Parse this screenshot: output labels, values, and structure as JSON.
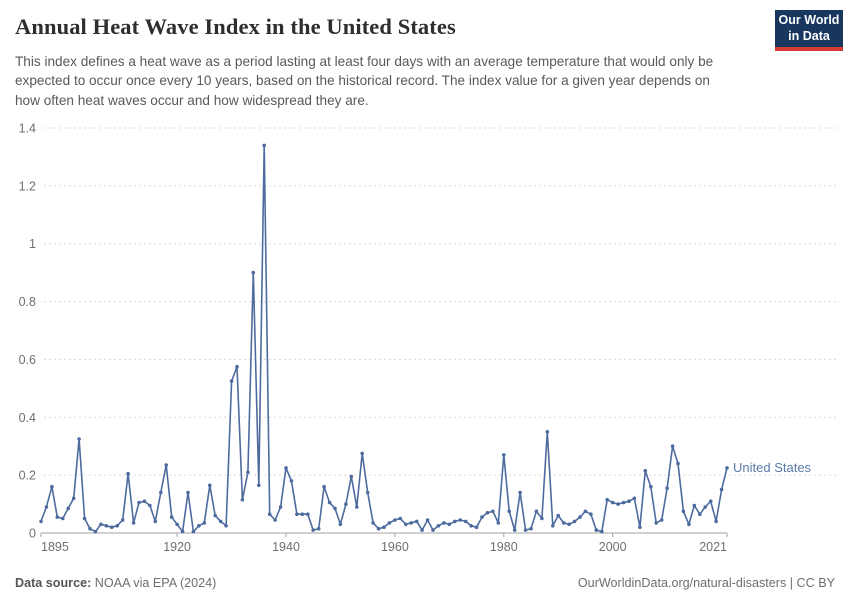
{
  "header": {
    "title": "Annual Heat Wave Index in the United States",
    "logo": {
      "line1": "Our World",
      "line2": "in Data"
    }
  },
  "subtitle": "This index defines a heat wave as a period lasting at least four days with an average temperature that would only be expected to occur once every 10 years, based on the historical record. The index value for a given year depends on how often heat waves occur and how widespread they are.",
  "chart_data": {
    "type": "line",
    "title": "Annual Heat Wave Index in the United States",
    "xlabel": "",
    "ylabel": "",
    "xlim": [
      1895,
      2021
    ],
    "ylim": [
      0,
      1.4
    ],
    "grid": "horizontal-dashed",
    "legend_position": "end-of-line-label",
    "xticks": [
      1895,
      1920,
      1940,
      1960,
      1980,
      2000,
      2021
    ],
    "ytick_values": [
      0,
      0.2,
      0.4,
      0.6,
      0.8,
      1,
      1.2,
      1.4
    ],
    "ytick_labels": [
      "0",
      "0.2",
      "0.4",
      "0.6",
      "0.8",
      "1",
      "1.2",
      "1.4"
    ],
    "line_color": "#4d6b9e",
    "entity_label_color": "#5b7ba8",
    "series": [
      {
        "name": "United States",
        "years": [
          1895,
          1896,
          1897,
          1898,
          1899,
          1900,
          1901,
          1902,
          1903,
          1904,
          1905,
          1906,
          1907,
          1908,
          1909,
          1910,
          1911,
          1912,
          1913,
          1914,
          1915,
          1916,
          1917,
          1918,
          1919,
          1920,
          1921,
          1922,
          1923,
          1924,
          1925,
          1926,
          1927,
          1928,
          1929,
          1930,
          1931,
          1932,
          1933,
          1934,
          1935,
          1936,
          1937,
          1938,
          1939,
          1940,
          1941,
          1942,
          1943,
          1944,
          1945,
          1946,
          1947,
          1948,
          1949,
          1950,
          1951,
          1952,
          1953,
          1954,
          1955,
          1956,
          1957,
          1958,
          1959,
          1960,
          1961,
          1962,
          1963,
          1964,
          1965,
          1966,
          1967,
          1968,
          1969,
          1970,
          1971,
          1972,
          1973,
          1974,
          1975,
          1976,
          1977,
          1978,
          1979,
          1980,
          1981,
          1982,
          1983,
          1984,
          1985,
          1986,
          1987,
          1988,
          1989,
          1990,
          1991,
          1992,
          1993,
          1994,
          1995,
          1996,
          1997,
          1998,
          1999,
          2000,
          2001,
          2002,
          2003,
          2004,
          2005,
          2006,
          2007,
          2008,
          2009,
          2010,
          2011,
          2012,
          2013,
          2014,
          2015,
          2016,
          2017,
          2018,
          2019,
          2020,
          2021
        ],
        "values": [
          0.04,
          0.09,
          0.16,
          0.055,
          0.05,
          0.085,
          0.12,
          0.325,
          0.05,
          0.015,
          0.005,
          0.03,
          0.025,
          0.02,
          0.025,
          0.045,
          0.205,
          0.035,
          0.105,
          0.11,
          0.095,
          0.04,
          0.14,
          0.235,
          0.055,
          0.03,
          0.005,
          0.14,
          0.005,
          0.025,
          0.035,
          0.165,
          0.06,
          0.04,
          0.025,
          0.525,
          0.575,
          0.115,
          0.21,
          0.9,
          0.165,
          1.34,
          0.065,
          0.045,
          0.09,
          0.225,
          0.18,
          0.065,
          0.065,
          0.065,
          0.01,
          0.015,
          0.16,
          0.105,
          0.085,
          0.03,
          0.1,
          0.195,
          0.09,
          0.275,
          0.14,
          0.035,
          0.015,
          0.02,
          0.035,
          0.045,
          0.05,
          0.03,
          0.035,
          0.04,
          0.01,
          0.045,
          0.01,
          0.025,
          0.035,
          0.03,
          0.04,
          0.045,
          0.04,
          0.025,
          0.02,
          0.055,
          0.07,
          0.075,
          0.035,
          0.27,
          0.075,
          0.01,
          0.14,
          0.01,
          0.015,
          0.075,
          0.05,
          0.35,
          0.025,
          0.06,
          0.035,
          0.03,
          0.04,
          0.055,
          0.075,
          0.065,
          0.01,
          0.005,
          0.115,
          0.105,
          0.1,
          0.105,
          0.11,
          0.12,
          0.02,
          0.215,
          0.16,
          0.035,
          0.045,
          0.155,
          0.3,
          0.24,
          0.075,
          0.03,
          0.095,
          0.065,
          0.09,
          0.11,
          0.04,
          0.15,
          0.225
        ]
      }
    ]
  },
  "footer": {
    "source_label": "Data source:",
    "source_value": " NOAA via EPA (2024)",
    "right": "OurWorldinData.org/natural-disasters | CC BY"
  }
}
